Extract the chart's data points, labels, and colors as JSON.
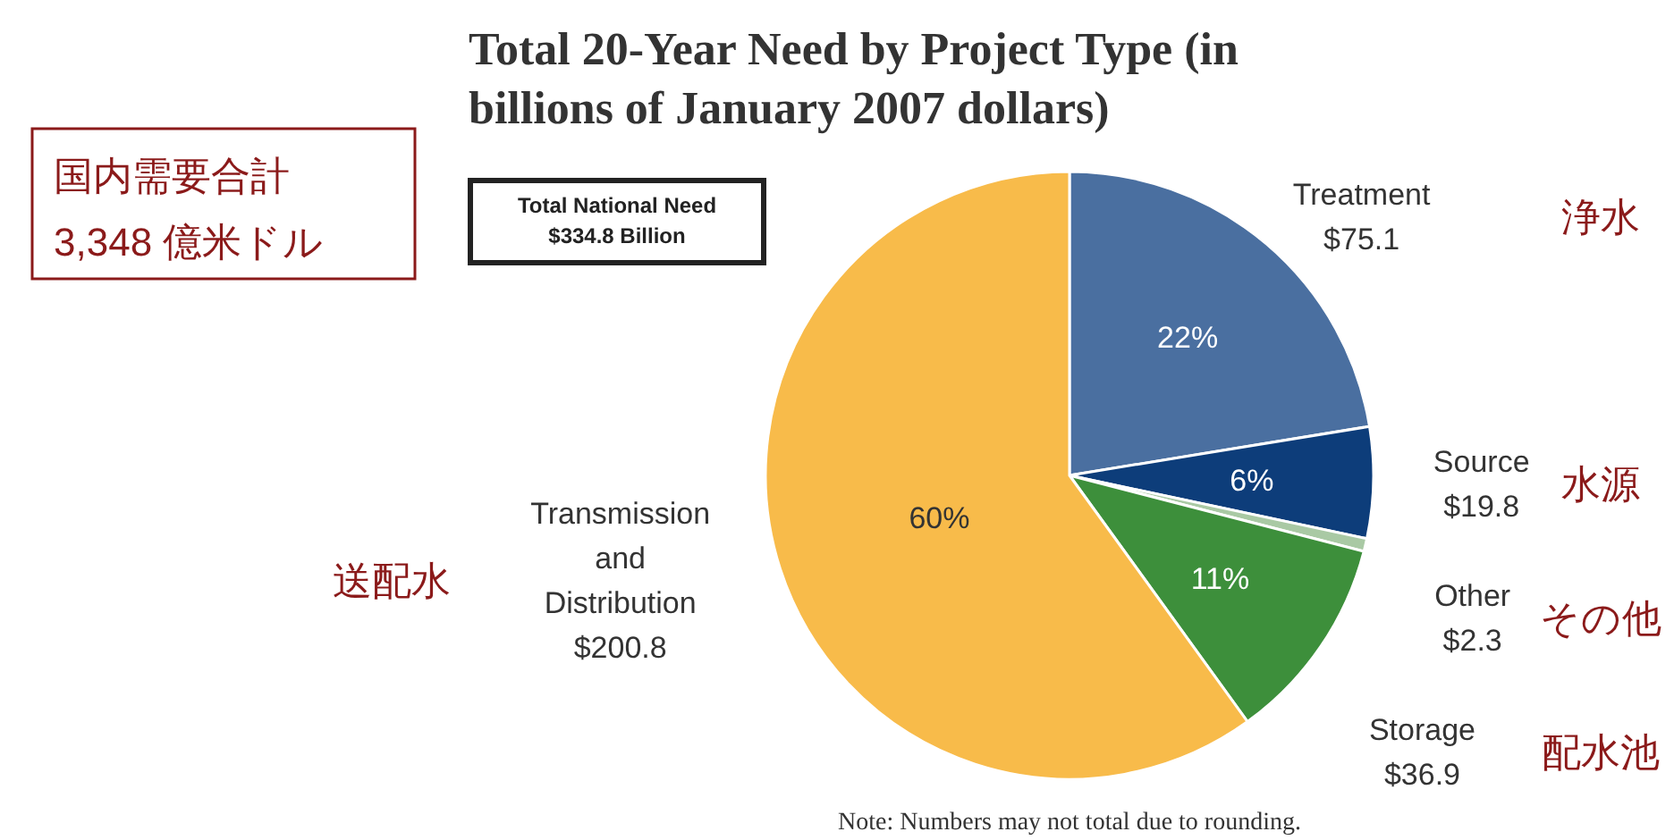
{
  "chart_data": {
    "type": "pie",
    "title": "Total 20-Year Need by Project Type (in billions of January 2007 dollars)",
    "categories": [
      "Treatment",
      "Source",
      "Other",
      "Storage",
      "Transmission and Distribution"
    ],
    "values": [
      75.1,
      19.8,
      2.3,
      36.9,
      200.8
    ],
    "value_labels": [
      "$75.1",
      "$19.8",
      "$2.3",
      "$36.9",
      "$200.8"
    ],
    "colors": [
      "#4a6fa0",
      "#0d3d7a",
      "#a9c9a4",
      "#3d8f3b",
      "#f8bb4a"
    ],
    "annotations": [
      {
        "text": "22%",
        "x": "Treatment"
      },
      {
        "text": "6%",
        "x": "Source"
      },
      {
        "text": "11%",
        "x": "Storage"
      },
      {
        "text": "60%",
        "x": "Transmission and Distribution"
      },
      {
        "text": "浄水",
        "x": "Treatment"
      },
      {
        "text": "水源",
        "x": "Source"
      },
      {
        "text": "その他",
        "x": "Other"
      },
      {
        "text": "配水池",
        "x": "Storage"
      },
      {
        "text": "送配水",
        "x": "Transmission and Distribution"
      },
      "Total National Need $334.8 Billion",
      "国内需要合計 3,348 億米ドル",
      "Note: Numbers may not total due to rounding."
    ]
  }
}
